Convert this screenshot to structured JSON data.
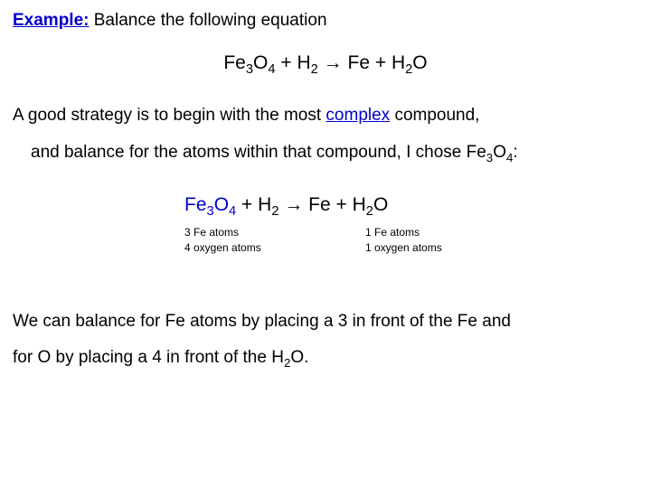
{
  "exampleLabel": "Example:",
  "exampleText": "  Balance the following equation",
  "eq1": {
    "fe3o4": "Fe",
    "sub3": "3",
    "o": "O",
    "sub4": "4",
    "plus1": "   +   H",
    "sub2a": "2",
    "arrow": "    →    Fe    + H",
    "sub2b": "2",
    "endO": "O"
  },
  "strategy1_a": "A good strategy is to begin with the most ",
  "strategy1_complex": "complex",
  "strategy1_b": " compound,",
  "strategy2_a": "and balance for the atoms within that compound, I chose Fe",
  "strategy2_sub3": "3",
  "strategy2_mid": "O",
  "strategy2_sub4": "4",
  "strategy2_colon": ":",
  "annot": {
    "l1": "3 Fe atoms",
    "l2": "4 oxygen atoms",
    "r1": "1 Fe atoms",
    "r2": "1 oxygen atoms"
  },
  "conc1": "We can balance for Fe atoms by placing a 3 in front of the Fe and",
  "conc2_a": "for O by placing a 4 in front of the H",
  "conc2_sub2": "2",
  "conc2_b": "O."
}
